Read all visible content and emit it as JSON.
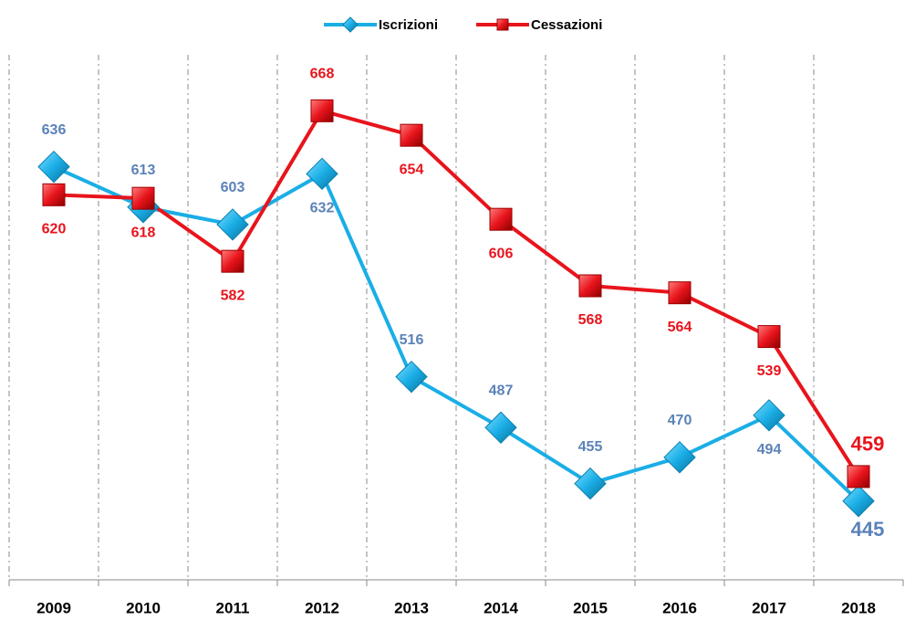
{
  "chart_data": {
    "type": "line",
    "categories": [
      "2009",
      "2010",
      "2011",
      "2012",
      "2013",
      "2014",
      "2015",
      "2016",
      "2017",
      "2018"
    ],
    "series": [
      {
        "name": "Iscrizioni",
        "color": "#1aaee6",
        "label_color": "#5b82b8",
        "values": [
          636,
          613,
          603,
          632,
          516,
          487,
          455,
          470,
          494,
          445
        ]
      },
      {
        "name": "Cessazioni",
        "color": "#e8141c",
        "label_color": "#e8141c",
        "values": [
          620,
          618,
          582,
          668,
          654,
          606,
          568,
          564,
          539,
          459
        ]
      }
    ],
    "ylim": [
      400,
      700
    ],
    "grid": true,
    "legend": "top"
  }
}
